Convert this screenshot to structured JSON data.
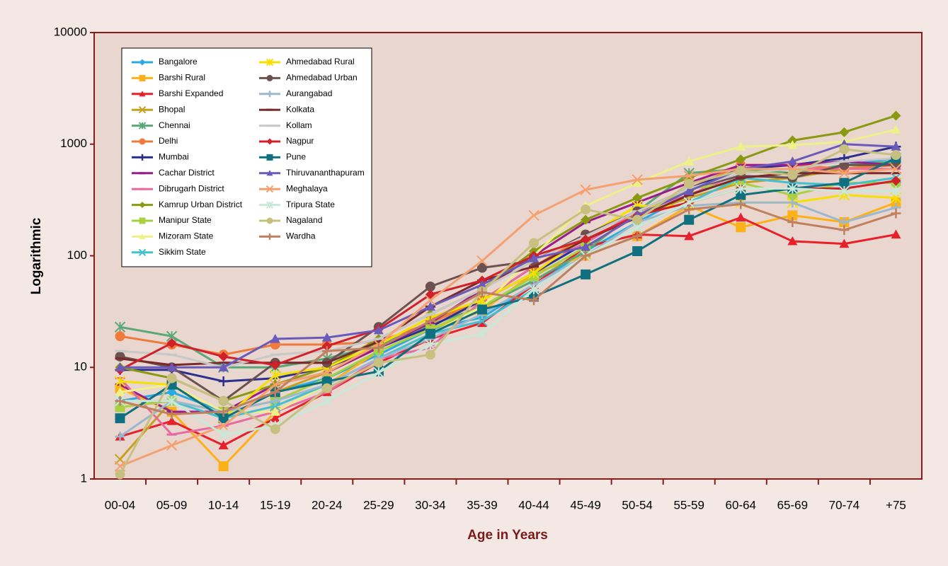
{
  "chart_data": {
    "type": "line",
    "x_label": "Age in Years",
    "y_label": "Logarithmic",
    "log_scale": true,
    "ylim": [
      1,
      10000
    ],
    "yticks": [
      1,
      10,
      100,
      1000,
      10000
    ],
    "categories": [
      "00-04",
      "05-09",
      "10-14",
      "15-19",
      "20-24",
      "25-29",
      "30-34",
      "35-39",
      "40-44",
      "45-49",
      "50-54",
      "55-59",
      "60-64",
      "65-69",
      "70-74",
      "+75"
    ],
    "legend": "upper left",
    "series": [
      {
        "name": "Bangalore",
        "color": "#29abe2",
        "marker": "diamond",
        "values": [
          5,
          6,
          4,
          6,
          8,
          13,
          22,
          28,
          55,
          110,
          200,
          350,
          500,
          550,
          650,
          750
        ]
      },
      {
        "name": "Barshi Rural",
        "color": "#fbb117",
        "marker": "square",
        "values": [
          6.5,
          4,
          1.3,
          4,
          7,
          14,
          22,
          32,
          70,
          100,
          150,
          280,
          180,
          230,
          200,
          300
        ]
      },
      {
        "name": "Barshi Expanded",
        "color": "#e8202a",
        "marker": "triangle",
        "values": [
          2.4,
          3.3,
          2,
          3.5,
          6,
          11,
          18,
          25,
          55,
          120,
          155,
          150,
          220,
          135,
          128,
          155
        ]
      },
      {
        "name": "Bhopal",
        "color": "#c8a020",
        "marker": "x",
        "values": [
          1.5,
          5,
          4,
          6,
          9,
          15,
          26,
          40,
          80,
          140,
          230,
          330,
          450,
          500,
          600,
          700
        ]
      },
      {
        "name": "Chennai",
        "color": "#5aa878",
        "marker": "asterisk",
        "values": [
          23,
          19,
          10,
          10,
          12,
          16,
          24,
          35,
          60,
          110,
          250,
          550,
          600,
          550,
          650,
          700
        ]
      },
      {
        "name": "Delhi",
        "color": "#f07a3a",
        "marker": "circle",
        "values": [
          19,
          16,
          13,
          16,
          16,
          17,
          25,
          40,
          80,
          150,
          250,
          400,
          650,
          650,
          600,
          650
        ]
      },
      {
        "name": "Mumbai",
        "color": "#2b2f8f",
        "marker": "plus",
        "values": [
          9.5,
          9.5,
          7.5,
          8,
          10,
          15,
          23,
          40,
          70,
          130,
          250,
          400,
          600,
          650,
          750,
          950
        ]
      },
      {
        "name": "Cachar District",
        "color": "#9b1b8a",
        "marker": "dash",
        "values": [
          7,
          4,
          4,
          7,
          9,
          15,
          25,
          50,
          100,
          200,
          300,
          450,
          650,
          650,
          700,
          650
        ]
      },
      {
        "name": "Dibrugarh District",
        "color": "#e86aa0",
        "marker": "dash",
        "values": [
          8,
          2.5,
          3,
          4,
          6,
          12,
          15,
          40,
          80,
          130,
          250,
          350,
          550,
          600,
          600,
          600
        ]
      },
      {
        "name": "Kamrup Urban District",
        "color": "#8a9a10",
        "marker": "diamond",
        "values": [
          10,
          8,
          5,
          7,
          10,
          18,
          30,
          50,
          110,
          210,
          330,
          500,
          730,
          1080,
          1280,
          1800
        ]
      },
      {
        "name": "Manipur State",
        "color": "#a8d040",
        "marker": "square",
        "values": [
          4.4,
          5,
          4,
          5,
          8,
          14,
          22,
          35,
          65,
          120,
          230,
          400,
          450,
          350,
          450,
          450
        ]
      },
      {
        "name": "Mizoram State",
        "color": "#eef08a",
        "marker": "triangle",
        "values": [
          6,
          7,
          4,
          4,
          7,
          12,
          20,
          35,
          100,
          280,
          450,
          700,
          950,
          980,
          1050,
          1350
        ]
      },
      {
        "name": "Sikkim State",
        "color": "#40c0d0",
        "marker": "x",
        "values": [
          5,
          5,
          3.5,
          4.5,
          7,
          12,
          20,
          26,
          50,
          100,
          180,
          300,
          500,
          450,
          430,
          500
        ]
      },
      {
        "name": "Ahmedabad Rural",
        "color": "#f5e000",
        "marker": "asterisk",
        "values": [
          7.5,
          7,
          3.5,
          8.5,
          10,
          16,
          28,
          40,
          70,
          150,
          280,
          280,
          300,
          300,
          350,
          330
        ]
      },
      {
        "name": "Ahmedabad Urban",
        "color": "#6b5250",
        "marker": "circle",
        "values": [
          12.5,
          10,
          5,
          11,
          11,
          23,
          53,
          78,
          90,
          155,
          250,
          400,
          520,
          500,
          650,
          650
        ]
      },
      {
        "name": "Aurangabad",
        "color": "#9ab8d0",
        "marker": "plus",
        "values": [
          2.4,
          5,
          4,
          5,
          7,
          12,
          18,
          30,
          55,
          100,
          200,
          280,
          300,
          300,
          200,
          270
        ]
      },
      {
        "name": "Kolkata",
        "color": "#7a2a2a",
        "marker": "dash",
        "values": [
          12,
          10.5,
          11,
          11,
          11,
          17,
          35,
          60,
          80,
          140,
          220,
          350,
          500,
          550,
          550,
          550
        ]
      },
      {
        "name": "Kollam",
        "color": "#c8c8c8",
        "marker": "dash",
        "values": [
          14,
          13,
          10,
          13,
          14,
          18,
          30,
          50,
          90,
          150,
          250,
          400,
          550,
          600,
          700,
          750
        ]
      },
      {
        "name": "Nagpur",
        "color": "#d0202a",
        "marker": "diamond",
        "values": [
          9.5,
          16.5,
          12.5,
          10.5,
          15.5,
          22,
          45,
          60,
          100,
          140,
          230,
          300,
          400,
          400,
          400,
          470
        ]
      },
      {
        "name": "Pune",
        "color": "#107080",
        "marker": "square",
        "values": [
          3.5,
          7,
          3.5,
          6,
          7.5,
          9.2,
          20,
          33,
          43,
          68,
          110,
          210,
          350,
          400,
          450,
          750
        ]
      },
      {
        "name": "Thiruvananthapuram",
        "color": "#6a5aba",
        "marker": "triangle",
        "values": [
          10,
          10,
          10,
          18,
          18.5,
          21.5,
          35,
          55,
          95,
          120,
          230,
          380,
          600,
          700,
          1000,
          950
        ]
      },
      {
        "name": "Meghalaya",
        "color": "#f5a070",
        "marker": "x",
        "values": [
          1.3,
          2,
          3,
          7,
          9,
          16,
          40,
          90,
          230,
          390,
          480,
          520,
          600,
          600,
          550,
          600
        ]
      },
      {
        "name": "Tripura State",
        "color": "#c8e8d8",
        "marker": "asterisk",
        "values": [
          5,
          5,
          2.5,
          3,
          5,
          9,
          16,
          20,
          50,
          100,
          180,
          300,
          400,
          400,
          380,
          380
        ]
      },
      {
        "name": "Nagaland",
        "color": "#c8c080",
        "marker": "circle",
        "values": [
          1.1,
          8,
          5,
          2.8,
          6.5,
          11,
          13,
          48,
          130,
          260,
          210,
          440,
          580,
          530,
          900,
          800
        ]
      },
      {
        "name": "Wardha",
        "color": "#c08060",
        "marker": "plus",
        "values": [
          5,
          3.8,
          4,
          6,
          14,
          15,
          26,
          47,
          40,
          100,
          150,
          260,
          290,
          200,
          170,
          240
        ]
      }
    ]
  }
}
